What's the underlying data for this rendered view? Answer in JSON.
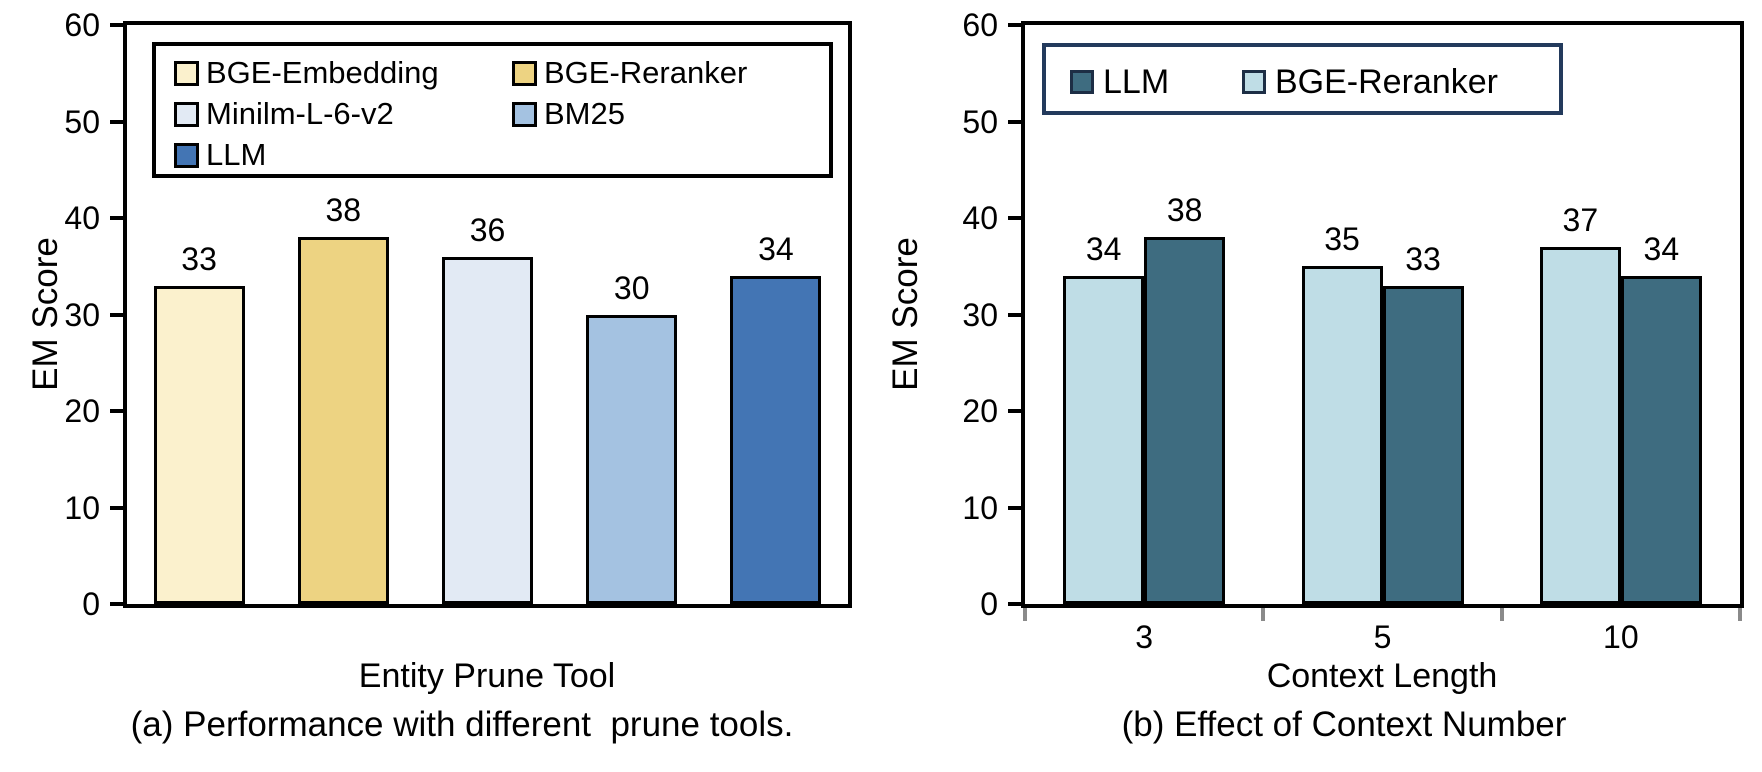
{
  "figure": {
    "background": "#ffffff",
    "text_color": "#000000",
    "axis_color": "#000000",
    "bar_border_color": "#000000"
  },
  "chart_data": [
    {
      "panel": "a",
      "type": "bar",
      "title": "",
      "caption": "(a) Performance with different  prune tools.",
      "xlabel": "Entity Prune Tool",
      "ylabel": "EM Score",
      "ylim": [
        0,
        60
      ],
      "yticks": [
        "0",
        "10",
        "20",
        "30",
        "40",
        "50",
        "60"
      ],
      "ytick_values": [
        0,
        10,
        20,
        30,
        40,
        50,
        60
      ],
      "grid": false,
      "show_x_ticklabels": false,
      "x_ticklabels": [],
      "categories": [
        "BGE-Embedding",
        "BGE-Reranker",
        "Minilm-L-6-v2",
        "BM25",
        "LLM"
      ],
      "values": [
        33,
        38,
        36,
        30,
        34
      ],
      "bar_labels": [
        "33",
        "38",
        "36",
        "30",
        "34"
      ],
      "bar_colors": [
        "#FBF1CD",
        "#EDD382",
        "#E2EAF4",
        "#A4C2E1",
        "#4375B4"
      ],
      "legend_position": "top-inside",
      "legend_border_color": "#000000",
      "legend_entries": [
        {
          "label": "BGE-Embedding",
          "color": "#FBF1CD"
        },
        {
          "label": "BGE-Reranker",
          "color": "#EDD382"
        },
        {
          "label": "Minilm-L-6-v2",
          "color": "#E2EAF4"
        },
        {
          "label": "BM25",
          "color": "#A4C2E1"
        },
        {
          "label": "LLM",
          "color": "#4375B4"
        }
      ]
    },
    {
      "panel": "b",
      "type": "bar",
      "title": "",
      "caption": "(b) Effect of Context Number",
      "xlabel": "Context Length",
      "ylabel": "EM Score",
      "ylim": [
        0,
        60
      ],
      "yticks": [
        "0",
        "10",
        "20",
        "30",
        "40",
        "50",
        "60"
      ],
      "ytick_values": [
        0,
        10,
        20,
        30,
        40,
        50,
        60
      ],
      "grid": false,
      "show_x_ticklabels": true,
      "x_ticklabels": [
        "3",
        "5",
        "10"
      ],
      "categories": [
        "3",
        "5",
        "10"
      ],
      "series": [
        {
          "name": "BGE-Reranker",
          "color": "#BFDDE6",
          "values": [
            34,
            35,
            37
          ],
          "labels": [
            "34",
            "35",
            "37"
          ]
        },
        {
          "name": "LLM",
          "color": "#3E6C80",
          "values": [
            38,
            33,
            34
          ],
          "labels": [
            "38",
            "33",
            "34"
          ]
        }
      ],
      "legend_position": "top-inside",
      "legend_border_color": "#233A5C",
      "legend_entries": [
        {
          "label": "LLM",
          "color": "#3E6C80"
        },
        {
          "label": "BGE-Reranker",
          "color": "#BFDDE6"
        }
      ]
    }
  ]
}
